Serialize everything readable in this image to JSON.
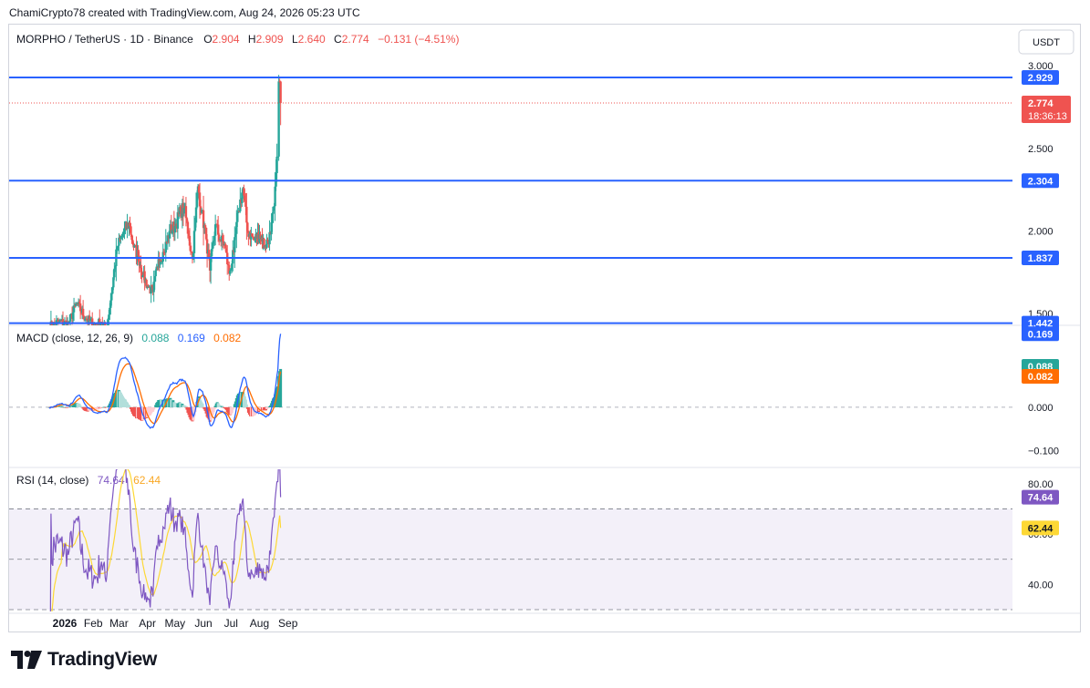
{
  "header": {
    "credit": "ChamiCrypto78 created with TradingView.com, Aug 24, 2026 05:23 UTC",
    "symbol": "MORPHO / TetherUS · 1D · Binance",
    "ohlc": [
      {
        "k": "O",
        "v": "2.904"
      },
      {
        "k": "H",
        "v": "2.909"
      },
      {
        "k": "L",
        "v": "2.640"
      },
      {
        "k": "C",
        "v": "2.774"
      }
    ],
    "change": "−0.131 (−4.51%)",
    "currency": "USDT"
  },
  "colors": {
    "up": "#26a69a",
    "down": "#ef5350",
    "level": "#2962ff",
    "macd": "#2962ff",
    "signal": "#ff6d00",
    "rsi": "#7e57c2",
    "rsi_ma": "#fdd835",
    "hist_up_strong": "#26a69a",
    "hist_up_weak": "#b2dfdb",
    "hist_down_strong": "#ef5350",
    "hist_down_weak": "#ffcdd2"
  },
  "chart_data": [
    {
      "type": "candlestick",
      "pane": "price",
      "series_name": "MORPHO / TetherUS",
      "ylim": [
        1.44,
        3.05
      ],
      "y_ticks": [
        {
          "v": 3.0,
          "label": "3.000"
        },
        {
          "v": 2.5,
          "label": "2.500"
        },
        {
          "v": 2.0,
          "label": "2.000"
        },
        {
          "v": 1.5,
          "label": "1.500"
        }
      ],
      "x_ticks": [
        {
          "label": "2026",
          "bold": true,
          "month": 1
        },
        {
          "label": "Feb",
          "month": 2
        },
        {
          "label": "Mar",
          "month": 3
        },
        {
          "label": "Apr",
          "month": 4
        },
        {
          "label": "May",
          "month": 5
        },
        {
          "label": "Jun",
          "month": 6
        },
        {
          "label": "Jul",
          "month": 7
        },
        {
          "label": "Aug",
          "month": 8
        },
        {
          "label": "Sep",
          "month": 9
        }
      ],
      "horizontal_levels": [
        2.929,
        2.304,
        1.837,
        1.442
      ],
      "level_labels": [
        "2.929",
        "2.304",
        "1.837",
        "1.442"
      ],
      "last_price": 2.774,
      "last_price_label": "2.774",
      "countdown": "18:36:13",
      "anchor_points": [
        {
          "d": "2025-12-15",
          "c": 1.42
        },
        {
          "d": "2025-12-25",
          "c": 1.45
        },
        {
          "d": "2026-01-05",
          "c": 1.44
        },
        {
          "d": "2026-01-14",
          "c": 1.56
        },
        {
          "d": "2026-01-24",
          "c": 1.47
        },
        {
          "d": "2026-02-03",
          "c": 1.43
        },
        {
          "d": "2026-02-10",
          "c": 1.45
        },
        {
          "d": "2026-02-15",
          "c": 1.4
        },
        {
          "d": "2026-02-20",
          "c": 1.58
        },
        {
          "d": "2026-02-27",
          "c": 1.9
        },
        {
          "d": "2026-03-04",
          "c": 1.97
        },
        {
          "d": "2026-03-12",
          "c": 2.05
        },
        {
          "d": "2026-03-17",
          "c": 1.9
        },
        {
          "d": "2026-03-22",
          "c": 1.85
        },
        {
          "d": "2026-03-27",
          "c": 1.73
        },
        {
          "d": "2026-04-02",
          "c": 1.66
        },
        {
          "d": "2026-04-07",
          "c": 1.63
        },
        {
          "d": "2026-04-13",
          "c": 1.83
        },
        {
          "d": "2026-04-19",
          "c": 1.87
        },
        {
          "d": "2026-04-25",
          "c": 2.0
        },
        {
          "d": "2026-05-01",
          "c": 2.03
        },
        {
          "d": "2026-05-07",
          "c": 2.12
        },
        {
          "d": "2026-05-11",
          "c": 2.14
        },
        {
          "d": "2026-05-16",
          "c": 1.97
        },
        {
          "d": "2026-05-20",
          "c": 1.83
        },
        {
          "d": "2026-05-23",
          "c": 2.05
        },
        {
          "d": "2026-05-26",
          "c": 2.27
        },
        {
          "d": "2026-05-30",
          "c": 2.12
        },
        {
          "d": "2026-06-04",
          "c": 1.95
        },
        {
          "d": "2026-06-08",
          "c": 1.76
        },
        {
          "d": "2026-06-14",
          "c": 2.04
        },
        {
          "d": "2026-06-19",
          "c": 1.95
        },
        {
          "d": "2026-06-24",
          "c": 1.92
        },
        {
          "d": "2026-06-29",
          "c": 1.74
        },
        {
          "d": "2026-07-04",
          "c": 1.87
        },
        {
          "d": "2026-07-09",
          "c": 2.12
        },
        {
          "d": "2026-07-14",
          "c": 2.26
        },
        {
          "d": "2026-07-19",
          "c": 2.0
        },
        {
          "d": "2026-07-26",
          "c": 1.95
        },
        {
          "d": "2026-08-01",
          "c": 1.98
        },
        {
          "d": "2026-08-07",
          "c": 1.91
        },
        {
          "d": "2026-08-13",
          "c": 1.98
        },
        {
          "d": "2026-08-17",
          "c": 2.15
        },
        {
          "d": "2026-08-19",
          "c": 2.35
        },
        {
          "d": "2026-08-21",
          "c": 2.45
        },
        {
          "d": "2026-08-22",
          "c": 2.905
        },
        {
          "d": "2026-08-23",
          "c": 2.904
        },
        {
          "d": "2026-08-24",
          "c": 2.774
        }
      ]
    },
    {
      "type": "line+bar",
      "pane": "macd",
      "title": "MACD (close, 12, 26, 9)",
      "values": {
        "histogram": "0.088",
        "macd": "0.169",
        "signal": "0.082"
      },
      "ylim": [
        -0.13,
        0.18
      ],
      "y_ticks": [
        {
          "v": 0.1,
          "label": "0.100"
        },
        {
          "v": 0.0,
          "label": "0.000"
        },
        {
          "v": -0.1,
          "label": "−0.100"
        }
      ],
      "series": [
        {
          "name": "MACD",
          "key": "macd"
        },
        {
          "name": "Signal",
          "key": "signal"
        },
        {
          "name": "Histogram",
          "key": "histogram"
        }
      ]
    },
    {
      "type": "line",
      "pane": "rsi",
      "title": "RSI (14, close)",
      "values": {
        "rsi": "74.64",
        "rsi_ma": "62.44"
      },
      "ylim": [
        30,
        85
      ],
      "bands": [
        70,
        50,
        30
      ],
      "y_ticks": [
        {
          "v": 80,
          "label": "80.00"
        },
        {
          "v": 60,
          "label": "60.00"
        },
        {
          "v": 40,
          "label": "40.00"
        }
      ],
      "series": [
        {
          "name": "RSI",
          "key": "rsi"
        },
        {
          "name": "RSI-based MA",
          "key": "rsi_ma"
        }
      ]
    }
  ],
  "footer": {
    "brand": "TradingView",
    "logo": "tradingview-logo-icon"
  }
}
